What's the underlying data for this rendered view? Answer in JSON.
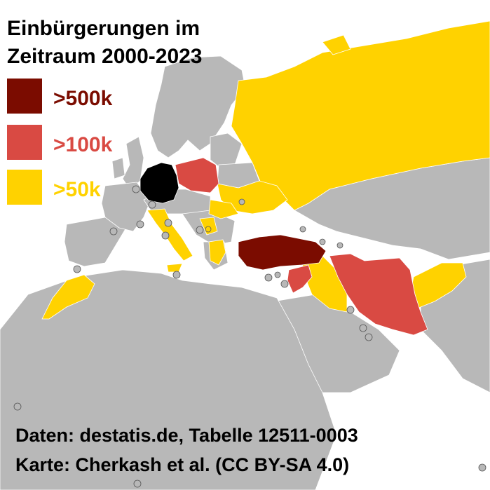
{
  "title": {
    "line1": "Einbürgerungen im",
    "line2": "Zeitraum 2000-2023"
  },
  "legend": [
    {
      "label": ">500k",
      "color": "#7b0c00"
    },
    {
      "label": ">100k",
      "color": "#d94a43"
    },
    {
      "label": ">50k",
      "color": "#ffd200"
    }
  ],
  "colors": {
    "sea": "#ffffff",
    "land_no_data": "#b8b8b8",
    "border": "#ffffff",
    "germany": "#000000",
    "small_state_marker": "#b8b8b8"
  },
  "credits": {
    "line1": "Daten: destatis.de, Tabelle 12511-0003",
    "line2": "Karte: Cherkash et al. (CC BY-SA 4.0)"
  }
}
